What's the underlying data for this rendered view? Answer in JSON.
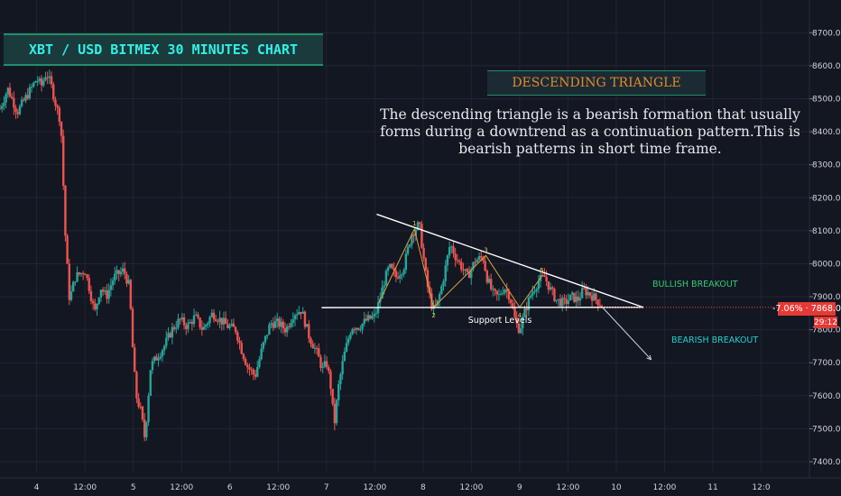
{
  "header": {
    "title": "XBT / USD BITMEX 30 MINUTES CHART",
    "pattern_name": "DESCENDING TRIANGLE",
    "description": "The descending triangle is a bearish formation that usually forms during a downtrend as a continuation pattern.This is bearish patterns in short time frame."
  },
  "price_badge": {
    "change": "-7.06%",
    "price": "7868.0",
    "timer": "29:12"
  },
  "annotations": {
    "bullish": "BULLISH BREAKOUT",
    "bearish": "BEARISH BREAKOUT",
    "support": "Support Levels",
    "points": [
      "1",
      "2",
      "3",
      "4",
      "5"
    ]
  },
  "colors": {
    "background": "#131722",
    "up": "#26a69a",
    "down": "#ef5350",
    "trend_lines": "#ffffff",
    "wave": "#d9a340",
    "bullish_text": "#2ecc71",
    "bearish_text": "#26d0ce"
  },
  "chart_data": {
    "type": "candlestick",
    "title": "XBT / USD BITMEX 30 MINUTES CHART",
    "ylim": [
      7370,
      8750
    ],
    "yticks": [
      7400,
      7500,
      7600,
      7700,
      7800,
      7900,
      8000,
      8100,
      8200,
      8300,
      8400,
      8500,
      8600,
      8700
    ],
    "ytick_labels": [
      "7400.0",
      "7500.0",
      "7600.0",
      "7700.0",
      "7800.0",
      "7900.0",
      "8000.0",
      "8100.0",
      "8200.0",
      "8300.0",
      "8400.0",
      "8500.0",
      "8600.0",
      "8700.0"
    ],
    "x_domain": [
      3.62,
      12.0
    ],
    "xticks": [
      4,
      4.5,
      5,
      5.5,
      6,
      6.5,
      7,
      7.5,
      8,
      8.5,
      9,
      9.5,
      10,
      10.5,
      11,
      11.5
    ],
    "xtick_labels": [
      "4",
      "12:00",
      "5",
      "12:00",
      "6",
      "12:00",
      "7",
      "12:00",
      "8",
      "12:00",
      "9",
      "12:00",
      "10",
      "12:00",
      "11",
      "12:0"
    ],
    "price_path": [
      [
        3.62,
        8470
      ],
      [
        3.7,
        8530
      ],
      [
        3.8,
        8460
      ],
      [
        3.9,
        8510
      ],
      [
        4.0,
        8560
      ],
      [
        4.05,
        8540
      ],
      [
        4.1,
        8580
      ],
      [
        4.15,
        8540
      ],
      [
        4.2,
        8480
      ],
      [
        4.25,
        8430
      ],
      [
        4.3,
        8060
      ],
      [
        4.34,
        7890
      ],
      [
        4.4,
        7960
      ],
      [
        4.5,
        7980
      ],
      [
        4.55,
        7920
      ],
      [
        4.6,
        7850
      ],
      [
        4.66,
        7930
      ],
      [
        4.72,
        7900
      ],
      [
        4.8,
        7960
      ],
      [
        4.9,
        7980
      ],
      [
        4.96,
        7930
      ],
      [
        5.0,
        7710
      ],
      [
        5.03,
        7600
      ],
      [
        5.08,
        7550
      ],
      [
        5.12,
        7470
      ],
      [
        5.18,
        7690
      ],
      [
        5.25,
        7720
      ],
      [
        5.32,
        7750
      ],
      [
        5.4,
        7800
      ],
      [
        5.48,
        7830
      ],
      [
        5.56,
        7810
      ],
      [
        5.64,
        7840
      ],
      [
        5.72,
        7800
      ],
      [
        5.82,
        7850
      ],
      [
        5.9,
        7830
      ],
      [
        5.98,
        7810
      ],
      [
        6.06,
        7800
      ],
      [
        6.12,
        7740
      ],
      [
        6.18,
        7690
      ],
      [
        6.26,
        7660
      ],
      [
        6.34,
        7750
      ],
      [
        6.42,
        7820
      ],
      [
        6.5,
        7820
      ],
      [
        6.58,
        7800
      ],
      [
        6.66,
        7850
      ],
      [
        6.74,
        7860
      ],
      [
        6.82,
        7780
      ],
      [
        6.9,
        7730
      ],
      [
        6.96,
        7680
      ],
      [
        7.0,
        7700
      ],
      [
        7.04,
        7640
      ],
      [
        7.08,
        7510
      ],
      [
        7.12,
        7620
      ],
      [
        7.18,
        7720
      ],
      [
        7.26,
        7810
      ],
      [
        7.34,
        7810
      ],
      [
        7.42,
        7830
      ],
      [
        7.5,
        7840
      ],
      [
        7.55,
        7890
      ],
      [
        7.6,
        7950
      ],
      [
        7.65,
        7990
      ],
      [
        7.72,
        7960
      ],
      [
        7.8,
        7990
      ],
      [
        7.88,
        8090
      ],
      [
        7.96,
        8120
      ],
      [
        8.04,
        7940
      ],
      [
        8.1,
        7860
      ],
      [
        8.14,
        7870
      ],
      [
        8.2,
        7940
      ],
      [
        8.28,
        8060
      ],
      [
        8.34,
        8020
      ],
      [
        8.4,
        7990
      ],
      [
        8.46,
        7960
      ],
      [
        8.54,
        8010
      ],
      [
        8.62,
        8020
      ],
      [
        8.66,
        7960
      ],
      [
        8.72,
        7910
      ],
      [
        8.78,
        7900
      ],
      [
        8.84,
        7930
      ],
      [
        8.9,
        7900
      ],
      [
        8.96,
        7820
      ],
      [
        9.0,
        7800
      ],
      [
        9.06,
        7860
      ],
      [
        9.12,
        7910
      ],
      [
        9.2,
        7950
      ],
      [
        9.26,
        7960
      ],
      [
        9.32,
        7920
      ],
      [
        9.38,
        7890
      ],
      [
        9.46,
        7880
      ],
      [
        9.54,
        7900
      ],
      [
        9.6,
        7890
      ],
      [
        9.66,
        7920
      ],
      [
        9.72,
        7910
      ],
      [
        9.8,
        7890
      ],
      [
        9.86,
        7870
      ]
    ],
    "resistance_line": {
      "from": [
        7.52,
        8150
      ],
      "to": [
        10.28,
        7868
      ]
    },
    "support_line": {
      "from": [
        6.95,
        7867
      ],
      "to": [
        10.28,
        7868
      ]
    },
    "bearish_arrow": {
      "from": [
        9.86,
        7867
      ],
      "to": [
        10.36,
        7710
      ]
    },
    "wave_points": [
      {
        "label": "1",
        "x": 7.91,
        "y": 8105
      },
      {
        "label": "2",
        "x": 8.11,
        "y": 7868
      },
      {
        "label": "3",
        "x": 8.65,
        "y": 8025
      },
      {
        "label": "4",
        "x": 9.0,
        "y": 7868
      },
      {
        "label": "5",
        "x": 9.23,
        "y": 7963
      }
    ],
    "wave_start": {
      "x": 7.54,
      "y": 7880
    },
    "last_price": 7868.0
  }
}
